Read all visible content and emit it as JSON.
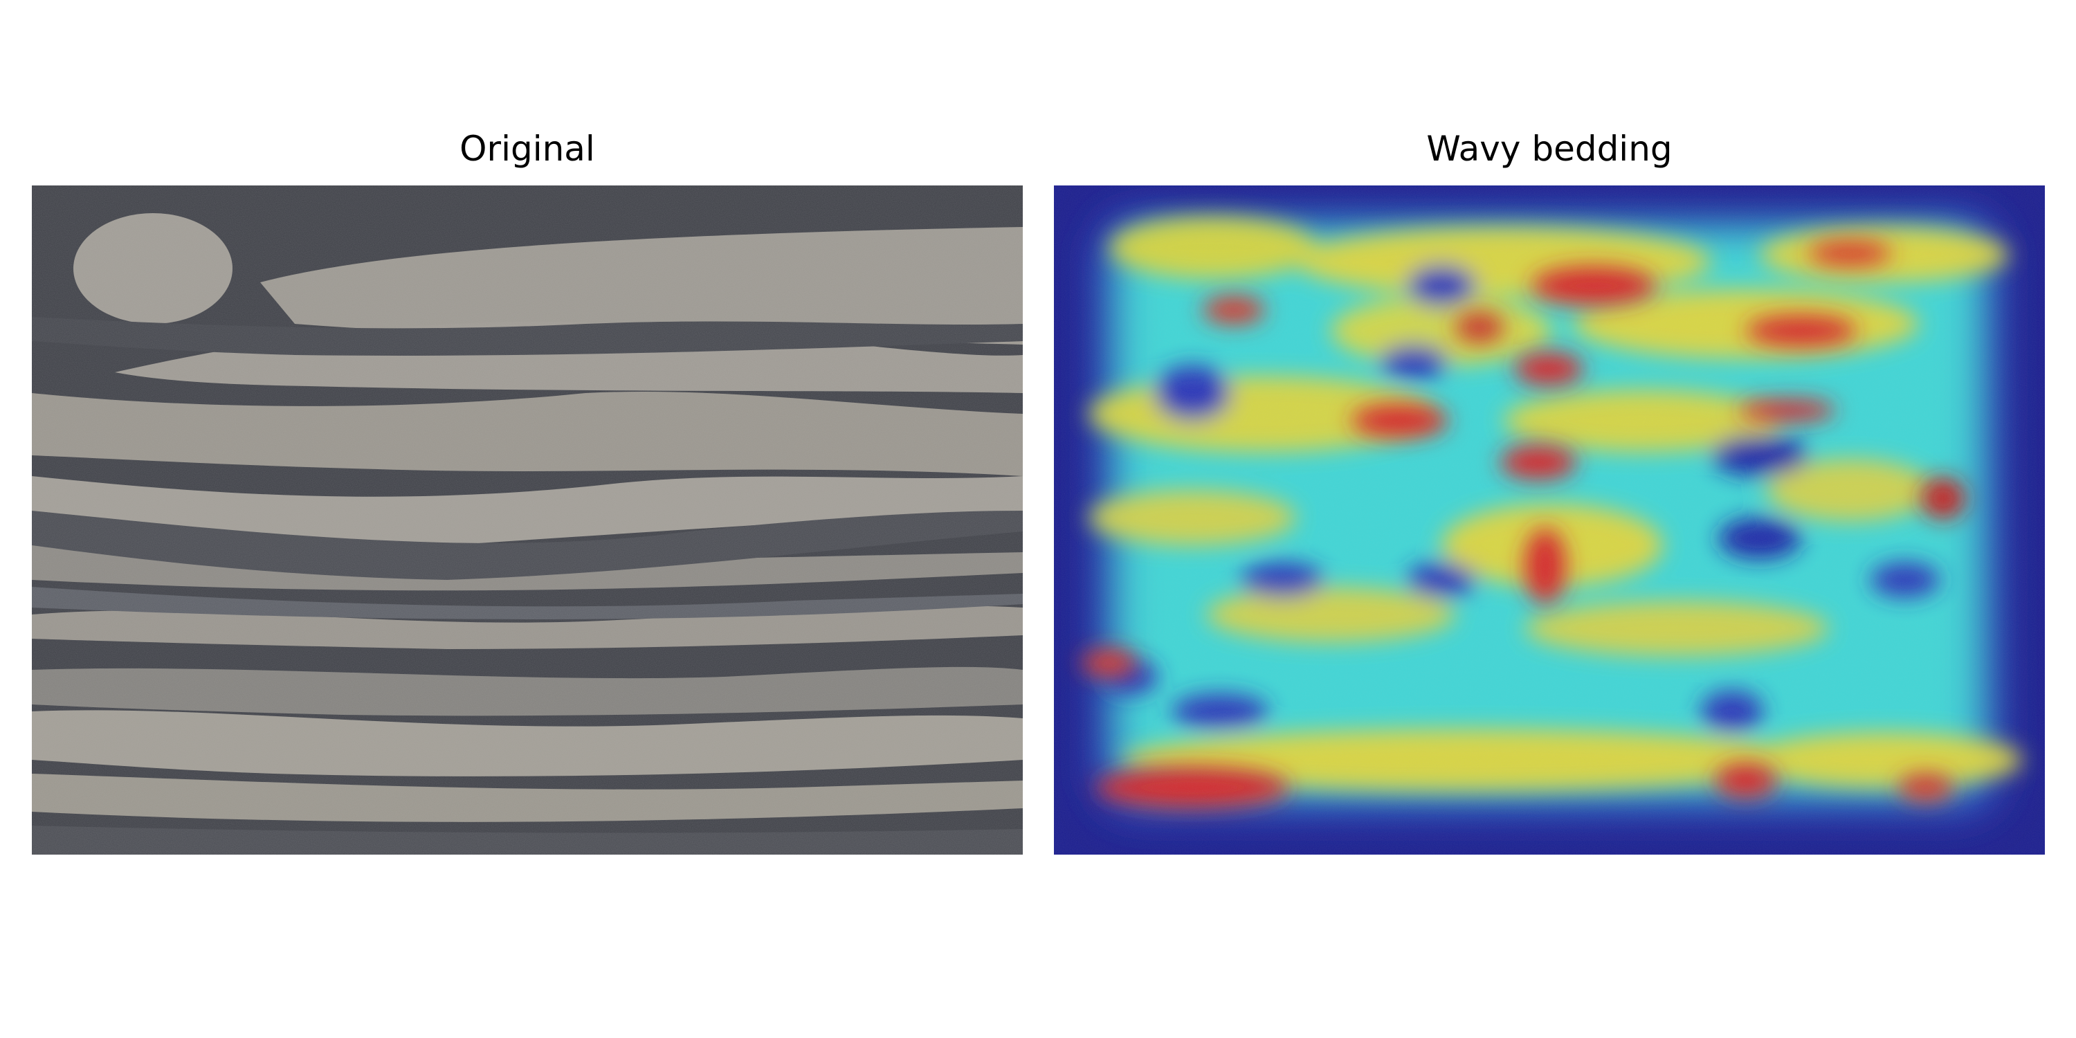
{
  "figure": {
    "panels": [
      {
        "title": "Original",
        "image": "grayscale rock core photograph with wavy dark and light bedding layers"
      },
      {
        "title": "Wavy bedding",
        "image": "same rock photograph overlaid with a blue-cyan-yellow-red activation heatmap"
      }
    ]
  },
  "colors": {
    "background": "#ffffff",
    "rock_dark": "#3f4148",
    "rock_mid": "#5d6068",
    "rock_light": "#a29e97",
    "heat_blue": "#1b1e8f",
    "heat_cyan": "#3fd6d6",
    "heat_yellow": "#e1d63c",
    "heat_red": "#d6282b"
  }
}
